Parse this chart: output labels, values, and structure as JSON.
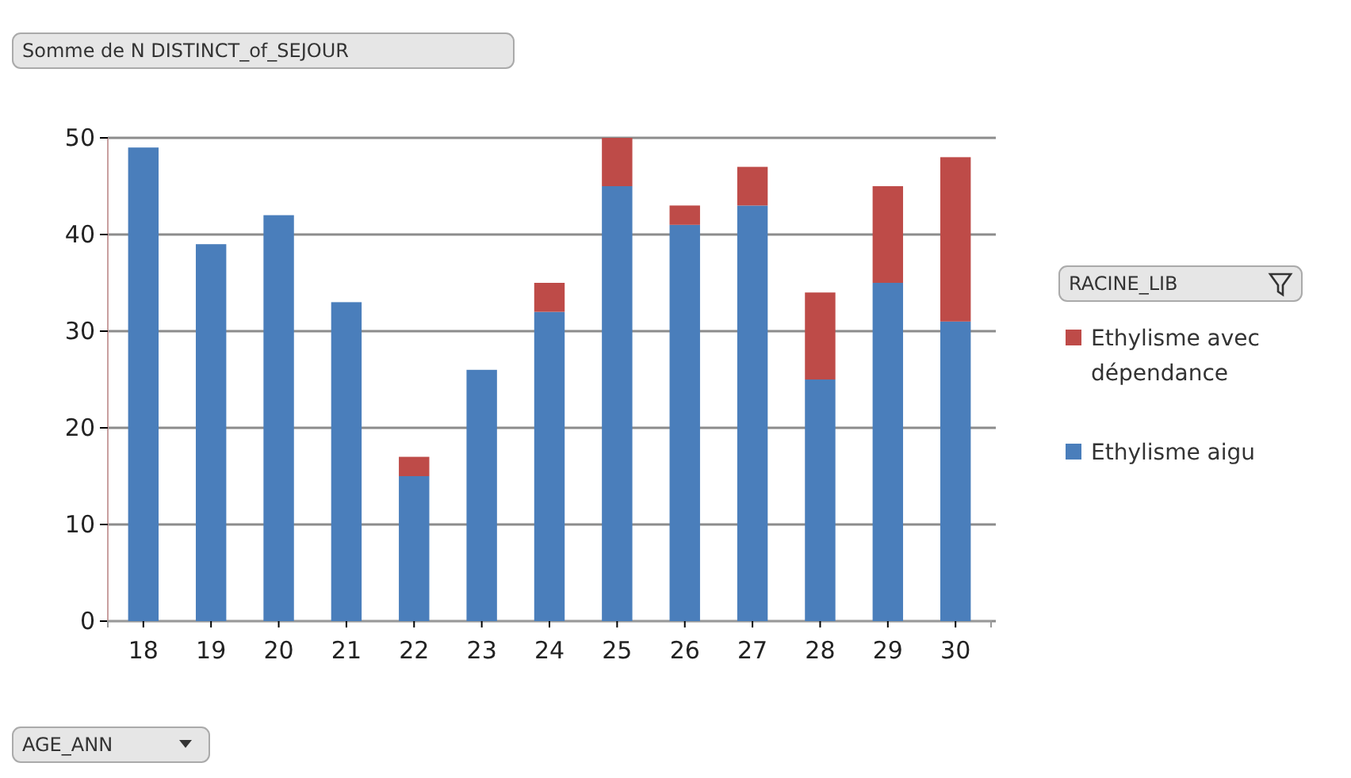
{
  "chart_data": {
    "type": "bar",
    "stacked": true,
    "title": "Somme de N DISTINCT_of_SEJOUR",
    "xlabel": "AGE_ANN",
    "legend_title": "RACINE_LIB",
    "categories": [
      "18",
      "19",
      "20",
      "21",
      "22",
      "23",
      "24",
      "25",
      "26",
      "27",
      "28",
      "29",
      "30"
    ],
    "series": [
      {
        "name": "Ethylisme aigu",
        "color": "#4a7ebb",
        "values": [
          49,
          39,
          42,
          33,
          15,
          26,
          32,
          45,
          41,
          43,
          25,
          35,
          31
        ]
      },
      {
        "name": "Ethylisme avec dépendance",
        "color": "#be4b48",
        "values": [
          null,
          null,
          null,
          null,
          2,
          null,
          3,
          5,
          2,
          4,
          9,
          10,
          17
        ]
      }
    ],
    "ylim": [
      0,
      50
    ],
    "yticks": [
      0,
      10,
      20,
      30,
      40,
      50
    ],
    "grid": "y",
    "legend": "right"
  }
}
